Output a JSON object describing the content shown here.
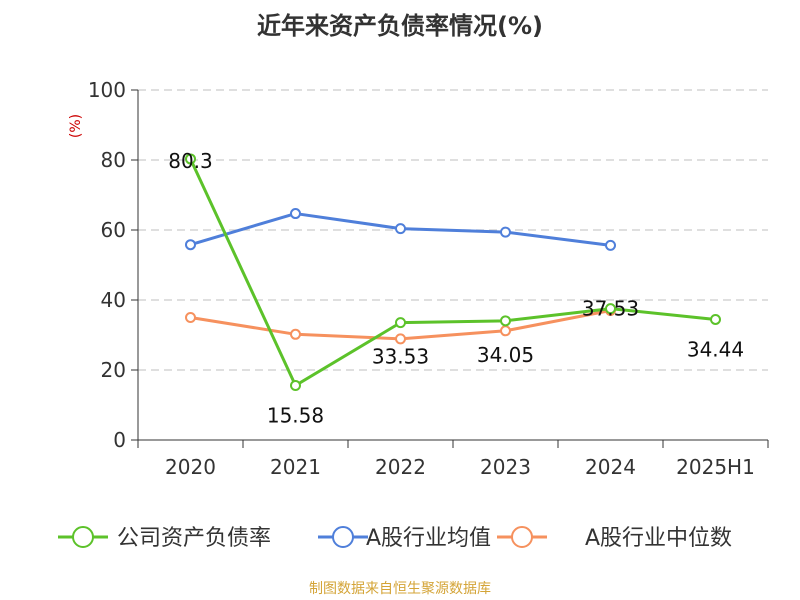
{
  "chart_data": {
    "type": "line",
    "title": "近年来资产负债率情况(%)",
    "ylabel": "(%)",
    "categories": [
      "2020",
      "2021",
      "2022",
      "2023",
      "2024",
      "2025H1"
    ],
    "ylim": [
      0,
      100
    ],
    "yticks": [
      0,
      20,
      40,
      60,
      80,
      100
    ],
    "grid": true,
    "legend_position": "bottom",
    "series": [
      {
        "name": "公司资产负债率",
        "color": "#5cc22a",
        "values": [
          80.3,
          15.58,
          33.53,
          34.05,
          37.53,
          34.44
        ],
        "labels": [
          "80.3",
          "15.58",
          "33.53",
          "34.05",
          "37.53",
          "34.44"
        ]
      },
      {
        "name": "A股行业均值",
        "color": "#4f7fda",
        "values": [
          55.8,
          64.7,
          60.4,
          59.4,
          55.6,
          null
        ]
      },
      {
        "name": "A股行业中位数",
        "color": "#f6915e",
        "values": [
          35.0,
          30.2,
          28.9,
          31.2,
          37.0,
          null
        ]
      }
    ]
  },
  "source": "制图数据来自恒生聚源数据库"
}
